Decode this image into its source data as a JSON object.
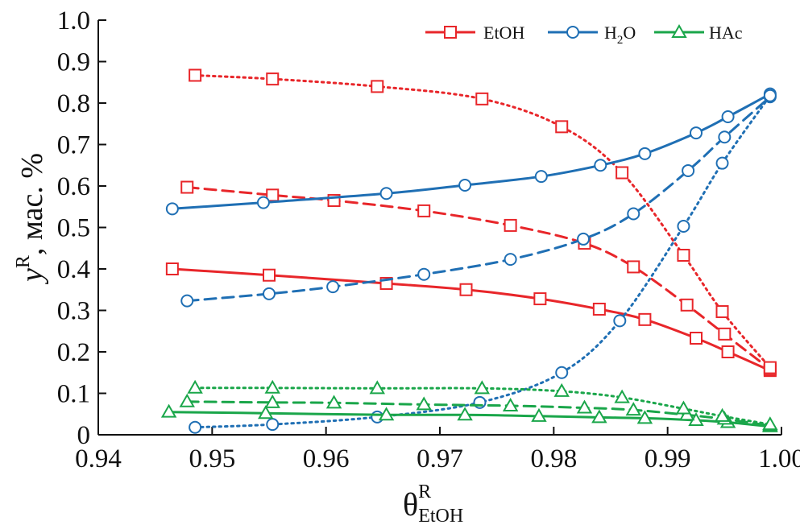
{
  "chart_data": {
    "type": "line",
    "title": "",
    "xlabel": {
      "base": "θ",
      "sup": "R",
      "sub": "EtOH"
    },
    "ylabel": {
      "base": "y",
      "sup": "R",
      "rest": ", мас. %"
    },
    "xlim": [
      0.94,
      1.0
    ],
    "ylim": [
      0,
      1.0
    ],
    "xticks": [
      "0.94",
      "0.95",
      "0.96",
      "0.97",
      "0.98",
      "0.99",
      "1.00"
    ],
    "yticks": [
      "0",
      "0.1",
      "0.2",
      "0.3",
      "0.4",
      "0.5",
      "0.6",
      "0.7",
      "0.8",
      "0.9",
      "1.0"
    ],
    "legend": [
      {
        "label": "EtOH",
        "color": "#e8262a",
        "marker": "square"
      },
      {
        "label": "H",
        "sub": "2",
        "label_tail": "O",
        "color": "#1f6fb4",
        "marker": "circle"
      },
      {
        "label": "HAc",
        "color": "#1aa64a",
        "marker": "triangle"
      }
    ],
    "series": [
      {
        "name": "EtOH",
        "style": "solid",
        "color": "#e8262a",
        "marker": "square",
        "points": [
          [
            0.9465,
            0.4
          ],
          [
            0.955,
            0.385
          ],
          [
            0.9653,
            0.365
          ],
          [
            0.9723,
            0.35
          ],
          [
            0.9788,
            0.328
          ],
          [
            0.984,
            0.303
          ],
          [
            0.988,
            0.278
          ],
          [
            0.9925,
            0.233
          ],
          [
            0.9953,
            0.2
          ],
          [
            0.999,
            0.155
          ]
        ]
      },
      {
        "name": "EtOH",
        "style": "dashed",
        "color": "#e8262a",
        "marker": "square",
        "points": [
          [
            0.9478,
            0.597
          ],
          [
            0.9553,
            0.578
          ],
          [
            0.9607,
            0.565
          ],
          [
            0.9686,
            0.54
          ],
          [
            0.9762,
            0.505
          ],
          [
            0.9827,
            0.462
          ],
          [
            0.987,
            0.405
          ],
          [
            0.9917,
            0.313
          ],
          [
            0.995,
            0.243
          ],
          [
            0.999,
            0.158
          ]
        ]
      },
      {
        "name": "EtOH",
        "style": "dotted",
        "color": "#e8262a",
        "marker": "square",
        "points": [
          [
            0.9485,
            0.867
          ],
          [
            0.9553,
            0.858
          ],
          [
            0.9645,
            0.84
          ],
          [
            0.9737,
            0.81
          ],
          [
            0.9807,
            0.743
          ],
          [
            0.986,
            0.632
          ],
          [
            0.9914,
            0.433
          ],
          [
            0.9948,
            0.297
          ],
          [
            0.999,
            0.162
          ]
        ]
      },
      {
        "name": "H2O",
        "style": "solid",
        "color": "#1f6fb4",
        "marker": "circle",
        "points": [
          [
            0.9465,
            0.545
          ],
          [
            0.9545,
            0.56
          ],
          [
            0.9653,
            0.582
          ],
          [
            0.9722,
            0.602
          ],
          [
            0.9789,
            0.623
          ],
          [
            0.9841,
            0.65
          ],
          [
            0.988,
            0.678
          ],
          [
            0.9925,
            0.728
          ],
          [
            0.9953,
            0.767
          ],
          [
            0.999,
            0.822
          ]
        ]
      },
      {
        "name": "H2O",
        "style": "dashed",
        "color": "#1f6fb4",
        "marker": "circle",
        "points": [
          [
            0.9478,
            0.323
          ],
          [
            0.955,
            0.34
          ],
          [
            0.9606,
            0.357
          ],
          [
            0.9686,
            0.387
          ],
          [
            0.9762,
            0.423
          ],
          [
            0.9826,
            0.472
          ],
          [
            0.987,
            0.533
          ],
          [
            0.9918,
            0.637
          ],
          [
            0.995,
            0.718
          ],
          [
            0.999,
            0.815
          ]
        ]
      },
      {
        "name": "H2O",
        "style": "dotted",
        "color": "#1f6fb4",
        "marker": "circle",
        "points": [
          [
            0.9485,
            0.018
          ],
          [
            0.9553,
            0.025
          ],
          [
            0.9645,
            0.043
          ],
          [
            0.9735,
            0.078
          ],
          [
            0.9807,
            0.15
          ],
          [
            0.9858,
            0.275
          ],
          [
            0.9914,
            0.503
          ],
          [
            0.9948,
            0.655
          ],
          [
            0.999,
            0.818
          ]
        ]
      },
      {
        "name": "HAc",
        "style": "solid",
        "color": "#1aa64a",
        "marker": "triangle",
        "points": [
          [
            0.9462,
            0.055
          ],
          [
            0.9547,
            0.052
          ],
          [
            0.9653,
            0.048
          ],
          [
            0.9722,
            0.048
          ],
          [
            0.9787,
            0.045
          ],
          [
            0.984,
            0.042
          ],
          [
            0.988,
            0.04
          ],
          [
            0.9925,
            0.035
          ],
          [
            0.9953,
            0.03
          ],
          [
            0.999,
            0.02
          ]
        ]
      },
      {
        "name": "HAc",
        "style": "dashed",
        "color": "#1aa64a",
        "marker": "triangle",
        "points": [
          [
            0.9478,
            0.08
          ],
          [
            0.9553,
            0.078
          ],
          [
            0.9607,
            0.077
          ],
          [
            0.9686,
            0.073
          ],
          [
            0.9762,
            0.07
          ],
          [
            0.9827,
            0.065
          ],
          [
            0.987,
            0.06
          ],
          [
            0.9917,
            0.048
          ],
          [
            0.995,
            0.038
          ],
          [
            0.999,
            0.022
          ]
        ]
      },
      {
        "name": "HAc",
        "style": "dotted",
        "color": "#1aa64a",
        "marker": "triangle",
        "points": [
          [
            0.9485,
            0.113
          ],
          [
            0.9553,
            0.113
          ],
          [
            0.9645,
            0.112
          ],
          [
            0.9737,
            0.112
          ],
          [
            0.9807,
            0.105
          ],
          [
            0.986,
            0.09
          ],
          [
            0.9914,
            0.063
          ],
          [
            0.9948,
            0.045
          ],
          [
            0.999,
            0.025
          ]
        ]
      }
    ]
  }
}
